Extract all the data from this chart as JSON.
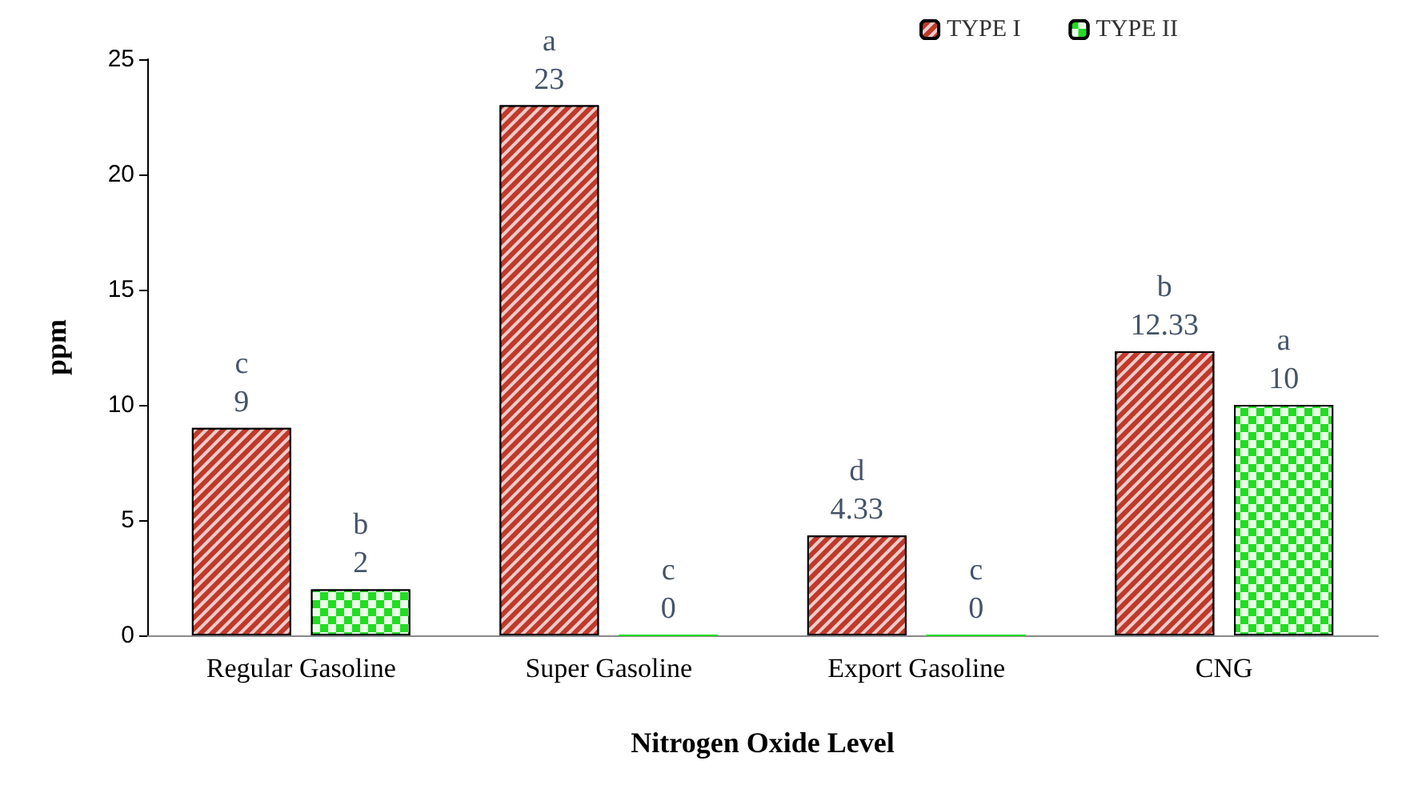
{
  "chart_data": {
    "type": "bar",
    "xlabel": "Nitrogen Oxide Level",
    "ylabel": "ppm",
    "categories": [
      "Regular Gasoline",
      "Super Gasoline",
      "Export Gasoline",
      "CNG"
    ],
    "series": [
      {
        "name": "TYPE I",
        "color": "#c0392b",
        "values": [
          9,
          23,
          4.33,
          12.33
        ],
        "value_labels": [
          "c\n9",
          "a\n23",
          "d\n4.33",
          "b\n12.33"
        ]
      },
      {
        "name": "TYPE II",
        "color": "#22dd22",
        "values": [
          2,
          0,
          0,
          10
        ],
        "value_labels": [
          "b\n2",
          "c\n0",
          "c\n0",
          "a\n10"
        ]
      }
    ],
    "ylim": [
      0,
      25
    ],
    "yticks": [
      0,
      5,
      10,
      15,
      20,
      25
    ],
    "grid": false,
    "legend": "top right"
  }
}
